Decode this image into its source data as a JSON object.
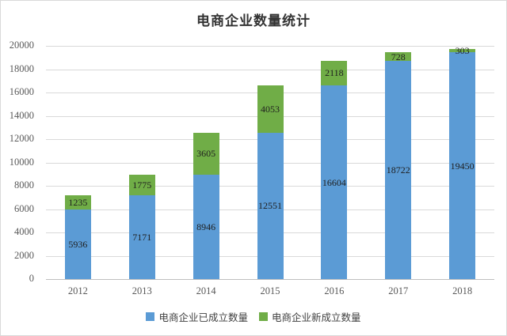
{
  "title": "电商企业数量统计",
  "colors": {
    "established": "#5B9BD5",
    "new": "#70AD47",
    "grid": "#D9D9D9",
    "axis_line": "#BFBFBF",
    "axis_text": "#595959",
    "data_label": "#1F1F1F"
  },
  "chart_data": {
    "type": "bar",
    "stacked": true,
    "title": "电商企业数量统计",
    "categories": [
      "2012",
      "2013",
      "2014",
      "2015",
      "2016",
      "2017",
      "2018"
    ],
    "series": [
      {
        "name": "电商企业已成立数量",
        "color": "#5B9BD5",
        "values": [
          5936,
          7171,
          8946,
          12551,
          16604,
          18722,
          19450
        ]
      },
      {
        "name": "电商企业新成立数量",
        "color": "#70AD47",
        "values": [
          1235,
          1775,
          3605,
          4053,
          2118,
          728,
          303
        ]
      }
    ],
    "ylim": [
      0,
      20000
    ],
    "yticks": [
      0,
      2000,
      4000,
      6000,
      8000,
      10000,
      12000,
      14000,
      16000,
      18000,
      20000
    ],
    "grid": true,
    "legend_position": "bottom"
  }
}
